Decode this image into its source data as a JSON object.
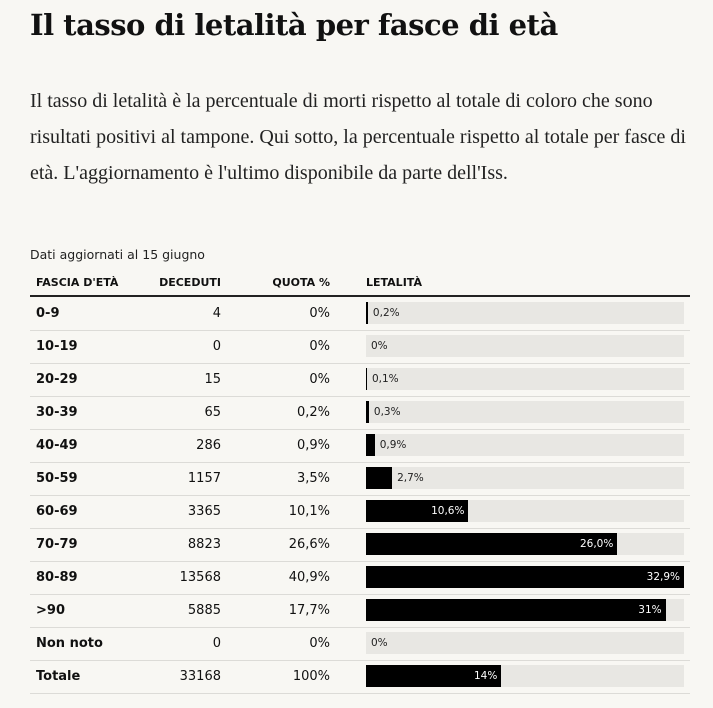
{
  "header": {
    "title": "Il tasso di letalità per fasce di età",
    "intro": "Il tasso di letalità è la percentuale di morti rispetto al totale di coloro che sono risultati positivi al tampone. Qui sotto, la percentuale rispetto al totale per fasce di età. L'aggiornamento è l'ultimo disponibile da parte dell'Iss.",
    "note": "Dati aggiornati al 15 giugno"
  },
  "table": {
    "columns": [
      "FASCIA D'ETÀ",
      "DECEDUTI",
      "QUOTA %",
      "LETALITÀ"
    ],
    "rows": [
      {
        "cells": [
          "0-9",
          "4",
          "0%"
        ],
        "lethality": {
          "value": 0.2,
          "label": "0,2%"
        }
      },
      {
        "cells": [
          "10-19",
          "0",
          "0%"
        ],
        "lethality": {
          "value": 0,
          "label": "0%"
        }
      },
      {
        "cells": [
          "20-29",
          "15",
          "0%"
        ],
        "lethality": {
          "value": 0.1,
          "label": "0,1%"
        }
      },
      {
        "cells": [
          "30-39",
          "65",
          "0,2%"
        ],
        "lethality": {
          "value": 0.3,
          "label": "0,3%"
        }
      },
      {
        "cells": [
          "40-49",
          "286",
          "0,9%"
        ],
        "lethality": {
          "value": 0.9,
          "label": "0,9%"
        }
      },
      {
        "cells": [
          "50-59",
          "1157",
          "3,5%"
        ],
        "lethality": {
          "value": 2.7,
          "label": "2,7%"
        }
      },
      {
        "cells": [
          "60-69",
          "3365",
          "10,1%"
        ],
        "lethality": {
          "value": 10.6,
          "label": "10,6%"
        }
      },
      {
        "cells": [
          "70-79",
          "8823",
          "26,6%"
        ],
        "lethality": {
          "value": 26.0,
          "label": "26,0%"
        }
      },
      {
        "cells": [
          "80-89",
          "13568",
          "40,9%"
        ],
        "lethality": {
          "value": 32.9,
          "label": "32,9%"
        }
      },
      {
        "cells": [
          ">90",
          "5885",
          "17,7%"
        ],
        "lethality": {
          "value": 31,
          "label": "31%"
        }
      },
      {
        "cells": [
          "Non noto",
          "0",
          "0%"
        ],
        "lethality": {
          "value": 0,
          "label": "0%"
        }
      },
      {
        "cells": [
          "Totale",
          "33168",
          "100%"
        ],
        "lethality": {
          "value": 14,
          "label": "14%"
        }
      }
    ]
  }
}
